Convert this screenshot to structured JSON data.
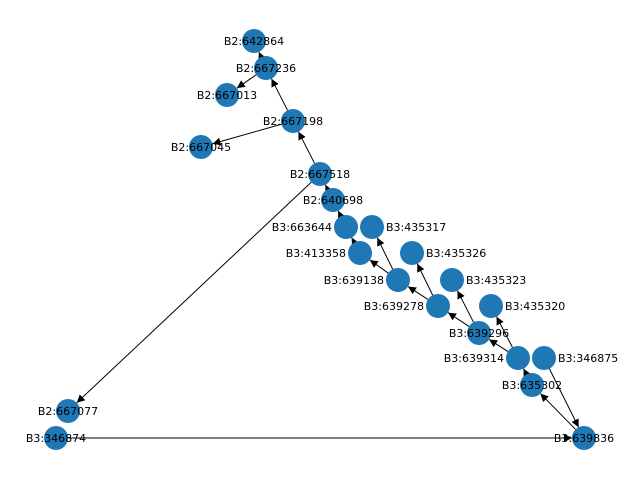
{
  "graph": {
    "node_color": "#1f77b4",
    "edge_color": "#000000",
    "nodes": [
      "B2:642864",
      "B2:667236",
      "B2:667013",
      "B2:667198",
      "B2:667045",
      "B2:667518",
      "B2:640698",
      "B3:663644",
      "B3:435317",
      "B3:413358",
      "B3:435326",
      "B3:639138",
      "B3:435323",
      "B3:639278",
      "B3:435320",
      "B3:639296",
      "B3:639314",
      "B3:346875",
      "B3:635302",
      "B3:639836",
      "B2:667077",
      "B3:346874"
    ],
    "edges": [
      [
        "B3:639836",
        "B3:635302"
      ],
      [
        "B3:635302",
        "B3:639314"
      ],
      [
        "B3:639314",
        "B3:639296"
      ],
      [
        "B3:639296",
        "B3:639278"
      ],
      [
        "B3:639278",
        "B3:639138"
      ],
      [
        "B3:639138",
        "B3:413358"
      ],
      [
        "B3:413358",
        "B3:663644"
      ],
      [
        "B3:663644",
        "B2:640698"
      ],
      [
        "B2:640698",
        "B2:667518"
      ],
      [
        "B2:667518",
        "B2:667198"
      ],
      [
        "B2:667198",
        "B2:667236"
      ],
      [
        "B2:667236",
        "B2:642864"
      ],
      [
        "B2:667236",
        "B2:667013"
      ],
      [
        "B2:667198",
        "B2:667045"
      ],
      [
        "B2:667518",
        "B2:667077"
      ],
      [
        "B3:346874",
        "B3:639836"
      ],
      [
        "B3:346875",
        "B3:639836"
      ],
      [
        "B3:639314",
        "B3:435320"
      ],
      [
        "B3:639296",
        "B3:435323"
      ],
      [
        "B3:639278",
        "B3:435326"
      ],
      [
        "B3:639138",
        "B3:435317"
      ]
    ]
  }
}
